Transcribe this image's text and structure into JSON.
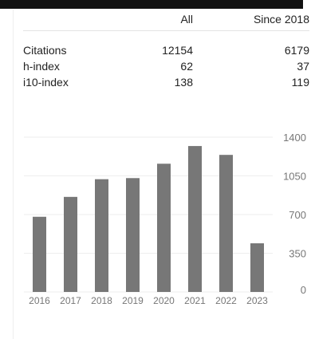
{
  "table": {
    "headers": [
      "",
      "All",
      "Since 2018"
    ],
    "rows": [
      {
        "label": "Citations",
        "all": "12154",
        "since": "6179"
      },
      {
        "label": "h-index",
        "all": "62",
        "since": "37"
      },
      {
        "label": "i10-index",
        "all": "138",
        "since": "119"
      }
    ]
  },
  "chart_data": {
    "type": "bar",
    "categories": [
      "2016",
      "2017",
      "2018",
      "2019",
      "2020",
      "2021",
      "2022",
      "2023"
    ],
    "values": [
      680,
      860,
      1020,
      1030,
      1160,
      1320,
      1240,
      440
    ],
    "ylim": [
      0,
      1400
    ],
    "yticks": [
      "0",
      "350",
      "700",
      "1050",
      "1400"
    ],
    "grid": true,
    "bar_color": "#777777"
  }
}
